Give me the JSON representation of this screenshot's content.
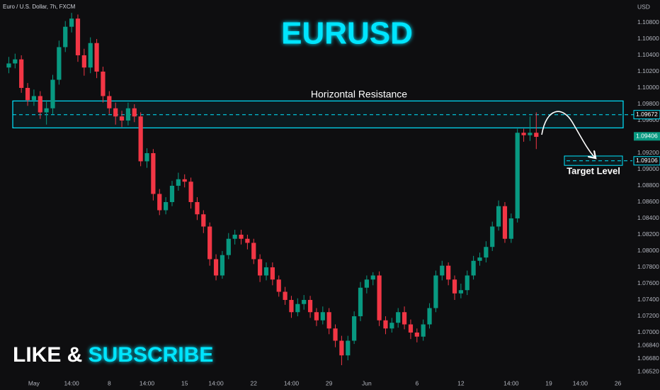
{
  "chart_data": {
    "type": "candlestick",
    "header": "Euro / U.S. Dollar, 7h, FXCM",
    "currency": "USD",
    "title": "EURUSD",
    "annotations": {
      "resistance": "Horizontal Resistance",
      "target": "Target Level"
    },
    "promo": {
      "part1": "LIKE & ",
      "part2": "SUBSCRIBE"
    },
    "up_color": "#089981",
    "down_color": "#f23645",
    "accent_color": "#00e5ff",
    "grid": false,
    "ylim": [
      1.06426,
      1.11078
    ],
    "yticks": [
      {
        "value": 1.108,
        "label": "1.10800"
      },
      {
        "value": 1.106,
        "label": "1.10600"
      },
      {
        "value": 1.104,
        "label": "1.10400"
      },
      {
        "value": 1.102,
        "label": "1.10200"
      },
      {
        "value": 1.1,
        "label": "1.10000"
      },
      {
        "value": 1.098,
        "label": "1.09800"
      },
      {
        "value": 1.096,
        "label": "1.09600"
      },
      {
        "value": 1.092,
        "label": "1.09200"
      },
      {
        "value": 1.09,
        "label": "1.09000"
      },
      {
        "value": 1.088,
        "label": "1.08800"
      },
      {
        "value": 1.086,
        "label": "1.08600"
      },
      {
        "value": 1.084,
        "label": "1.08400"
      },
      {
        "value": 1.082,
        "label": "1.08200"
      },
      {
        "value": 1.08,
        "label": "1.08000"
      },
      {
        "value": 1.078,
        "label": "1.07800"
      },
      {
        "value": 1.076,
        "label": "1.07600"
      },
      {
        "value": 1.074,
        "label": "1.07400"
      },
      {
        "value": 1.072,
        "label": "1.07200"
      },
      {
        "value": 1.07,
        "label": "1.07000"
      },
      {
        "value": 1.0684,
        "label": "1.06840"
      },
      {
        "value": 1.0668,
        "label": "1.06680"
      },
      {
        "value": 1.0652,
        "label": "1.06520"
      }
    ],
    "resistance_zone": [
      1.0951,
      1.0984
    ],
    "resistance_level": 1.09672,
    "last_price": 1.09406,
    "target_zone": [
      1.0905,
      1.09165
    ],
    "target_level": 1.09106,
    "categories": [
      null,
      null,
      null,
      null,
      "May",
      null,
      null,
      null,
      null,
      null,
      "14:00",
      null,
      null,
      null,
      null,
      null,
      "8",
      null,
      null,
      null,
      null,
      null,
      "14:00",
      null,
      null,
      null,
      null,
      null,
      "15",
      null,
      null,
      null,
      null,
      "14:00",
      null,
      null,
      null,
      null,
      null,
      "22",
      null,
      null,
      null,
      null,
      null,
      "14:00",
      null,
      null,
      null,
      null,
      null,
      "29",
      null,
      null,
      null,
      null,
      null,
      "Jun",
      null,
      null,
      null,
      null,
      null,
      null,
      null,
      "6",
      null,
      null,
      null,
      null,
      null,
      null,
      "12",
      null,
      null,
      null,
      null,
      null,
      null,
      null,
      "14:00",
      null,
      null,
      null,
      null,
      null,
      "19",
      null,
      null,
      null,
      null,
      "14:00",
      null,
      null,
      null,
      null,
      null,
      "26"
    ],
    "open": [
      1.1025,
      1.103,
      1.1035,
      1.1,
      1.0985,
      1.099,
      1.097,
      1.0975,
      1.101,
      1.105,
      1.1075,
      1.1085,
      1.104,
      1.1025,
      1.1055,
      1.102,
      1.099,
      1.0975,
      1.0965,
      1.096,
      1.0975,
      1.0965,
      1.091,
      1.092,
      1.087,
      1.085,
      1.086,
      1.088,
      1.0888,
      1.0885,
      1.086,
      1.0845,
      1.083,
      1.079,
      1.077,
      1.0795,
      1.0815,
      1.082,
      1.0815,
      1.081,
      1.079,
      1.077,
      1.078,
      1.0765,
      1.075,
      1.074,
      1.0725,
      1.0735,
      1.074,
      1.0725,
      1.0715,
      1.0725,
      1.0705,
      1.069,
      1.0672,
      1.069,
      1.072,
      1.0755,
      1.0765,
      1.077,
      1.0715,
      1.0705,
      1.0712,
      1.0725,
      1.071,
      1.07,
      1.0695,
      1.071,
      1.073,
      1.077,
      1.0782,
      1.0765,
      1.0748,
      1.0752,
      1.077,
      1.0788,
      1.0792,
      1.0805,
      1.083,
      1.0855,
      1.0815,
      1.084,
      1.0945,
      1.0942,
      1.0945,
      null,
      null,
      null,
      null,
      null,
      null,
      null,
      null,
      null,
      null,
      null,
      null,
      null
    ],
    "high": [
      1.1038,
      1.1042,
      1.104,
      1.1006,
      1.0998,
      1.0996,
      1.0985,
      1.1016,
      1.1058,
      1.1082,
      1.1092,
      1.109,
      1.1048,
      1.1062,
      1.106,
      1.1026,
      1.0996,
      1.0982,
      1.0972,
      1.0982,
      1.098,
      1.097,
      1.0926,
      1.0925,
      1.0876,
      1.0866,
      1.0886,
      1.0896,
      1.0894,
      1.089,
      1.0866,
      1.085,
      1.0835,
      1.0796,
      1.08,
      1.0822,
      1.0826,
      1.0826,
      1.082,
      1.0815,
      1.0796,
      1.0786,
      1.0786,
      1.077,
      1.0756,
      1.0745,
      1.0742,
      1.0746,
      1.0745,
      1.073,
      1.0732,
      1.073,
      1.071,
      1.0696,
      1.0696,
      1.0726,
      1.0762,
      1.077,
      1.0774,
      1.0775,
      1.072,
      1.0718,
      1.073,
      1.0732,
      1.0716,
      1.0705,
      1.0716,
      1.0736,
      1.0776,
      1.0788,
      1.0786,
      1.077,
      1.076,
      1.0776,
      1.0794,
      1.0798,
      1.0812,
      1.0836,
      1.0862,
      1.086,
      1.0846,
      1.095,
      1.095,
      1.0965,
      1.097,
      null,
      null,
      null,
      null,
      null,
      null,
      null,
      null,
      null,
      null,
      null,
      null,
      null
    ],
    "low": [
      1.1018,
      1.1024,
      1.0994,
      1.0978,
      1.0978,
      1.0962,
      1.0955,
      1.0968,
      1.1004,
      1.1044,
      1.1068,
      1.1032,
      1.1015,
      1.1018,
      1.1012,
      1.0982,
      1.0968,
      1.0955,
      1.0952,
      1.0954,
      1.0958,
      1.0904,
      1.0902,
      1.0862,
      1.0844,
      1.0845,
      1.0855,
      1.0874,
      1.0878,
      1.0852,
      1.0838,
      1.0822,
      1.0782,
      1.0764,
      1.0766,
      1.079,
      1.0808,
      1.0808,
      1.0802,
      1.0784,
      1.0762,
      1.0764,
      1.0758,
      1.0744,
      1.0734,
      1.0718,
      1.072,
      1.0728,
      1.0718,
      1.0708,
      1.071,
      1.0698,
      1.0682,
      1.066,
      1.0666,
      1.0686,
      1.0714,
      1.0748,
      1.0758,
      1.0708,
      1.0698,
      1.07,
      1.0706,
      1.0704,
      1.0692,
      1.0688,
      1.069,
      1.0705,
      1.0725,
      1.0764,
      1.0758,
      1.074,
      1.0742,
      1.0746,
      1.0765,
      1.0782,
      1.0786,
      1.08,
      1.0825,
      1.081,
      1.081,
      1.0835,
      1.0934,
      1.0935,
      1.0925,
      null,
      null,
      null,
      null,
      null,
      null,
      null,
      null,
      null,
      null,
      null,
      null,
      null
    ],
    "close": [
      1.103,
      1.1035,
      1.1,
      1.0985,
      1.099,
      1.097,
      1.0975,
      1.101,
      1.105,
      1.1075,
      1.1085,
      1.104,
      1.1025,
      1.1055,
      1.102,
      1.099,
      1.0975,
      1.0965,
      1.096,
      1.0975,
      1.0965,
      1.091,
      1.092,
      1.087,
      1.085,
      1.086,
      1.088,
      1.0888,
      1.0885,
      1.086,
      1.0845,
      1.083,
      1.079,
      1.077,
      1.0795,
      1.0815,
      1.082,
      1.0815,
      1.081,
      1.079,
      1.077,
      1.078,
      1.0765,
      1.075,
      1.074,
      1.0725,
      1.0735,
      1.074,
      1.0725,
      1.0715,
      1.0725,
      1.0705,
      1.069,
      1.0672,
      1.069,
      1.072,
      1.0755,
      1.0765,
      1.077,
      1.0715,
      1.0705,
      1.0712,
      1.0725,
      1.071,
      1.07,
      1.0695,
      1.071,
      1.073,
      1.077,
      1.0782,
      1.0765,
      1.0748,
      1.0752,
      1.077,
      1.0788,
      1.0792,
      1.0805,
      1.083,
      1.0855,
      1.0815,
      1.084,
      1.0945,
      1.0942,
      1.0945,
      1.094,
      null,
      null,
      null,
      null,
      null,
      null,
      null,
      null,
      null,
      null,
      null,
      null,
      null
    ]
  }
}
